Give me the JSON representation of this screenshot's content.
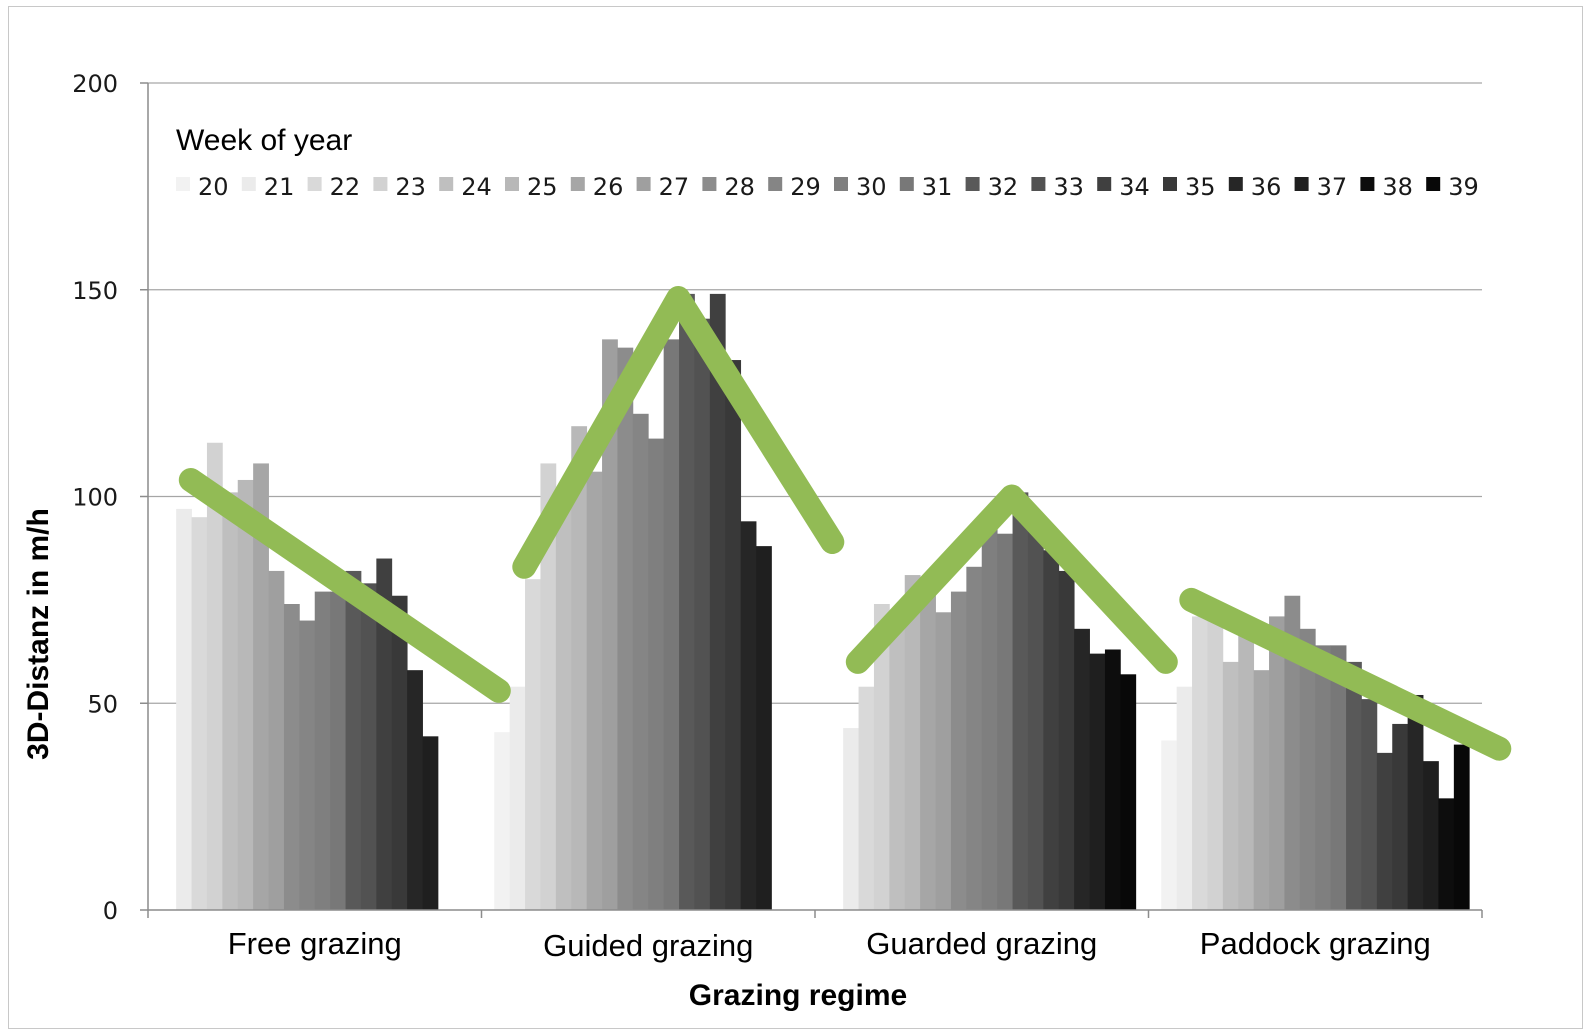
{
  "chart_data": {
    "type": "bar",
    "xlabel": "Grazing regime",
    "ylabel": "3D-Distanz in m/h",
    "ylim": [
      0,
      200
    ],
    "yticks": [
      0,
      50,
      100,
      150,
      200
    ],
    "grid": true,
    "legend": {
      "title": "Week of year",
      "position": "top"
    },
    "categories": [
      "Free grazing",
      "Guided grazing",
      "Guarded grazing",
      "Paddock grazing"
    ],
    "series": [
      {
        "name": "20",
        "color": "#f2f2f2",
        "values": [
          0,
          43,
          0,
          41
        ]
      },
      {
        "name": "21",
        "color": "#ebebeb",
        "values": [
          97,
          54,
          44,
          54
        ]
      },
      {
        "name": "22",
        "color": "#d9d9d9",
        "values": [
          95,
          80,
          54,
          71
        ]
      },
      {
        "name": "23",
        "color": "#d2d2d2",
        "values": [
          113,
          108,
          74,
          73
        ]
      },
      {
        "name": "24",
        "color": "#bfbfbf",
        "values": [
          101,
          100,
          68,
          60
        ]
      },
      {
        "name": "25",
        "color": "#b8b8b8",
        "values": [
          104,
          117,
          81,
          69
        ]
      },
      {
        "name": "26",
        "color": "#a6a6a6",
        "values": [
          108,
          106,
          80,
          58
        ]
      },
      {
        "name": "27",
        "color": "#9f9f9f",
        "values": [
          82,
          138,
          72,
          71
        ]
      },
      {
        "name": "28",
        "color": "#8c8c8c",
        "values": [
          74,
          136,
          77,
          76
        ]
      },
      {
        "name": "29",
        "color": "#858585",
        "values": [
          70,
          120,
          83,
          68
        ]
      },
      {
        "name": "30",
        "color": "#7f7f7f",
        "values": [
          77,
          114,
          96,
          64
        ]
      },
      {
        "name": "31",
        "color": "#787878",
        "values": [
          77,
          138,
          91,
          64
        ]
      },
      {
        "name": "32",
        "color": "#595959",
        "values": [
          82,
          149,
          101,
          60
        ]
      },
      {
        "name": "33",
        "color": "#525252",
        "values": [
          79,
          143,
          92,
          51
        ]
      },
      {
        "name": "34",
        "color": "#404040",
        "values": [
          85,
          149,
          87,
          38
        ]
      },
      {
        "name": "35",
        "color": "#393939",
        "values": [
          76,
          133,
          82,
          45
        ]
      },
      {
        "name": "36",
        "color": "#262626",
        "values": [
          58,
          94,
          68,
          52
        ]
      },
      {
        "name": "37",
        "color": "#1f1f1f",
        "values": [
          42,
          88,
          62,
          36
        ]
      },
      {
        "name": "38",
        "color": "#0d0d0d",
        "values": [
          0,
          0,
          63,
          27
        ]
      },
      {
        "name": "39",
        "color": "#080808",
        "values": [
          0,
          0,
          57,
          40
        ]
      }
    ],
    "trend_color": "#92bb55",
    "trend_lines": [
      {
        "category": "Free grazing",
        "points": [
          [
            0,
            104
          ],
          [
            1,
            53
          ]
        ]
      },
      {
        "category": "Guided grazing",
        "points": [
          [
            0,
            83
          ],
          [
            0.5,
            148
          ],
          [
            1,
            89
          ]
        ]
      },
      {
        "category": "Guarded grazing",
        "points": [
          [
            0,
            60
          ],
          [
            0.5,
            100
          ],
          [
            1,
            60
          ]
        ]
      },
      {
        "category": "Paddock grazing",
        "points": [
          [
            0,
            75
          ],
          [
            1,
            39
          ]
        ]
      }
    ]
  }
}
